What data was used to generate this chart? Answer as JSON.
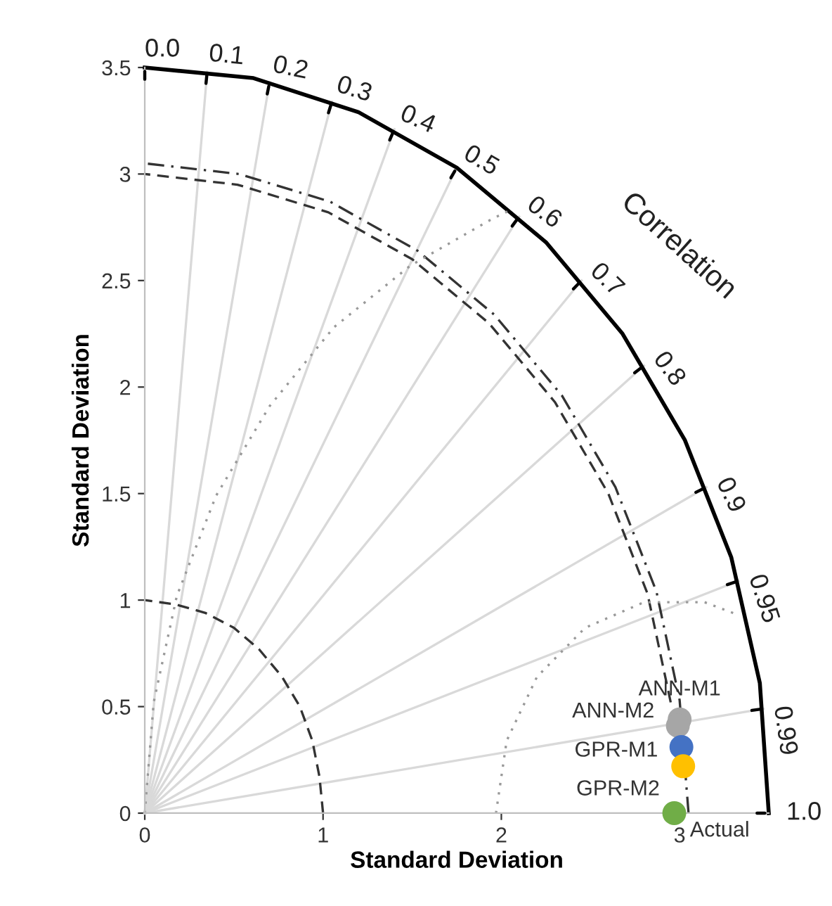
{
  "chart_data": {
    "type": "scatter",
    "xlabel": "Standard Deviation",
    "ylabel": "Standard Deviation",
    "xlim": [
      0,
      3.5
    ],
    "ylim": [
      0,
      3.5
    ],
    "xticks": [
      0,
      1,
      2,
      3
    ],
    "yticks": [
      0,
      0.5,
      1,
      1.5,
      2,
      2.5,
      3,
      3.5
    ],
    "grid": false,
    "marker": "circle",
    "series": [
      {
        "type": "line",
        "marker": "none",
        "color": "#d9d9d9",
        "line_style": "solid",
        "x": [
          0,
          0.35
        ],
        "values": [
          0,
          3.48
        ]
      },
      {
        "type": "line",
        "marker": "none",
        "color": "#d9d9d9",
        "line_style": "solid",
        "x": [
          0,
          0.7
        ],
        "values": [
          0,
          3.43
        ]
      },
      {
        "type": "line",
        "marker": "none",
        "color": "#d9d9d9",
        "line_style": "solid",
        "x": [
          0,
          1.05
        ],
        "values": [
          0,
          3.34
        ]
      },
      {
        "type": "line",
        "marker": "none",
        "color": "#d9d9d9",
        "line_style": "solid",
        "x": [
          0,
          1.4
        ],
        "values": [
          0,
          3.21
        ]
      },
      {
        "type": "line",
        "marker": "none",
        "color": "#d9d9d9",
        "line_style": "solid",
        "x": [
          0,
          1.75
        ],
        "values": [
          0,
          3.03
        ]
      },
      {
        "type": "line",
        "marker": "none",
        "color": "#d9d9d9",
        "line_style": "solid",
        "x": [
          0,
          2.1
        ],
        "values": [
          0,
          2.8
        ]
      },
      {
        "type": "line",
        "marker": "none",
        "color": "#d9d9d9",
        "line_style": "solid",
        "x": [
          0,
          2.45
        ],
        "values": [
          0,
          2.5
        ]
      },
      {
        "type": "line",
        "marker": "none",
        "color": "#d9d9d9",
        "line_style": "solid",
        "x": [
          0,
          2.8
        ],
        "values": [
          0,
          2.1
        ]
      },
      {
        "type": "line",
        "marker": "none",
        "color": "#d9d9d9",
        "line_style": "solid",
        "x": [
          0,
          3.15
        ],
        "values": [
          0,
          1.53
        ]
      },
      {
        "type": "line",
        "marker": "none",
        "color": "#d9d9d9",
        "line_style": "solid",
        "x": [
          0,
          3.33
        ],
        "values": [
          0,
          1.09
        ]
      },
      {
        "type": "line",
        "marker": "none",
        "color": "#d9d9d9",
        "line_style": "solid",
        "x": [
          0,
          3.47
        ],
        "values": [
          0,
          0.49
        ]
      },
      {
        "type": "line",
        "marker": "none",
        "color": "#000000",
        "line_style": "solid",
        "x": [
          3.5,
          3.45,
          3.29,
          3.03,
          2.68,
          2.25,
          1.75,
          1.2,
          0.61,
          0
        ],
        "values": [
          0,
          0.61,
          1.2,
          1.75,
          2.25,
          2.68,
          3.03,
          3.29,
          3.45,
          3.5
        ]
      },
      {
        "type": "line",
        "marker": "none",
        "color": "#333333",
        "line_style": "dashed",
        "x": [
          1,
          0.98,
          0.94,
          0.87,
          0.77,
          0.64,
          0.5,
          0.34,
          0.17,
          0
        ],
        "values": [
          0,
          0.17,
          0.34,
          0.5,
          0.64,
          0.77,
          0.87,
          0.94,
          0.98,
          1
        ]
      },
      {
        "type": "line",
        "marker": "none",
        "color": "#333333",
        "line_style": "dashed",
        "x": [
          2.95,
          2.82,
          2.6,
          2.3,
          1.93,
          1.5,
          1.03,
          0.52,
          0
        ],
        "values": [
          0.52,
          1.03,
          1.5,
          1.93,
          2.3,
          2.6,
          2.82,
          2.95,
          3
        ]
      },
      {
        "type": "line",
        "marker": "none",
        "color": "#333333",
        "line_style": "dashdot",
        "x": [
          3.05,
          3.0,
          2.87,
          2.64,
          2.34,
          1.96,
          1.53,
          1.04,
          0.53,
          0
        ],
        "values": [
          0,
          0.53,
          1.04,
          1.53,
          1.96,
          2.34,
          2.64,
          2.87,
          3.0,
          3.05
        ]
      },
      {
        "type": "line",
        "marker": "none",
        "color": "#999999",
        "line_style": "dotted",
        "x": [
          1.97,
          2.03,
          2.2,
          2.47,
          2.8,
          3.14,
          3.33
        ],
        "values": [
          0,
          0.34,
          0.64,
          0.87,
          0.99,
          0.99,
          0.93
        ]
      },
      {
        "type": "line",
        "marker": "none",
        "color": "#999999",
        "line_style": "dotted",
        "x": [
          0,
          0.05,
          0.18,
          0.4,
          0.7,
          1.06,
          1.49,
          1.95,
          2.05
        ],
        "values": [
          0,
          0.52,
          1.02,
          1.49,
          1.91,
          2.28,
          2.57,
          2.79,
          2.83
        ]
      },
      {
        "name": "ANN-M1",
        "color": "#a6a6a6",
        "x": [
          3.0
        ],
        "values": [
          0.44
        ]
      },
      {
        "name": "ANN-M2",
        "color": "#a6a6a6",
        "x": [
          2.99
        ],
        "values": [
          0.41
        ]
      },
      {
        "name": "GPR-M1",
        "color": "#4472c4",
        "x": [
          3.01
        ],
        "values": [
          0.31
        ]
      },
      {
        "name": "GPR-M2",
        "color": "#ffc000",
        "x": [
          3.02
        ],
        "values": [
          0.22
        ]
      },
      {
        "name": "Actual",
        "color": "#70ad47",
        "x": [
          2.97
        ],
        "values": [
          0
        ]
      }
    ],
    "annotations": [
      "Correlation",
      {
        "text": "0.0",
        "x": 0,
        "y": 3.5
      },
      {
        "text": "0.1",
        "x": 0.35,
        "y": 3.48
      },
      {
        "text": "0.2",
        "x": 0.7,
        "y": 3.43
      },
      {
        "text": "0.3",
        "x": 1.05,
        "y": 3.34
      },
      {
        "text": "0.4",
        "x": 1.4,
        "y": 3.21
      },
      {
        "text": "0.5",
        "x": 1.75,
        "y": 3.03
      },
      {
        "text": "0.6",
        "x": 2.1,
        "y": 2.8
      },
      {
        "text": "0.7",
        "x": 2.45,
        "y": 2.5
      },
      {
        "text": "0.8",
        "x": 2.8,
        "y": 2.1
      },
      {
        "text": "0.9",
        "x": 3.15,
        "y": 1.53
      },
      {
        "text": "0.95",
        "x": 3.33,
        "y": 1.09
      },
      {
        "text": "0.99",
        "x": 3.47,
        "y": 0.49
      },
      {
        "text": "1.0",
        "x": 3.5,
        "y": 0
      }
    ]
  }
}
